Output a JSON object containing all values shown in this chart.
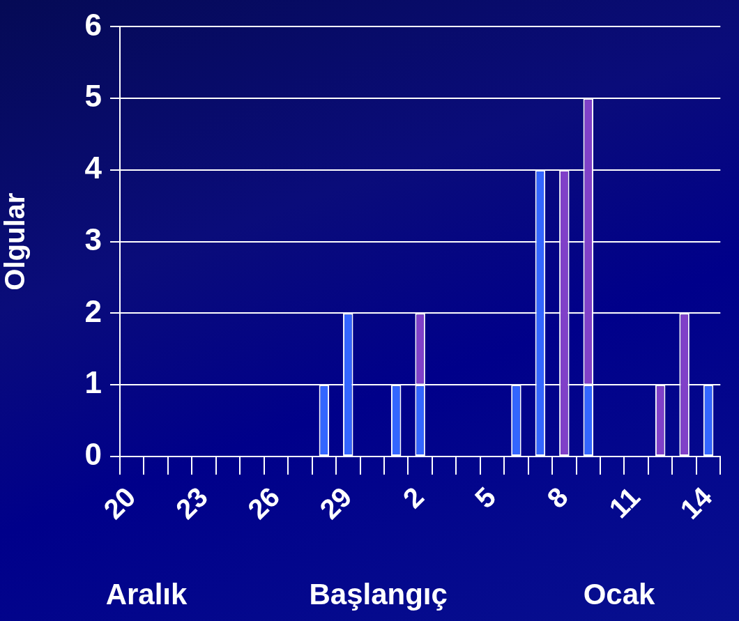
{
  "chart_data": {
    "type": "bar",
    "stacked": true,
    "ylabel": "Olgular",
    "xlabel": "Başlangıç",
    "annotations": [
      "Aralık",
      "Ocak"
    ],
    "categories": [
      "20",
      null,
      null,
      "23",
      null,
      null,
      "26",
      null,
      null,
      "29",
      null,
      null,
      "2",
      null,
      null,
      "5",
      null,
      null,
      "8",
      null,
      null,
      "11",
      null,
      null,
      "14"
    ],
    "series": [
      {
        "color": "#3366ff",
        "values": [
          0,
          0,
          0,
          0,
          0,
          0,
          0,
          0,
          1,
          2,
          0,
          1,
          1,
          0,
          0,
          0,
          1,
          4,
          0,
          1,
          0,
          0,
          0,
          0,
          1
        ]
      },
      {
        "color": "#8040c8",
        "values": [
          0,
          0,
          0,
          0,
          0,
          0,
          0,
          0,
          0,
          0,
          0,
          0,
          1,
          0,
          0,
          0,
          0,
          0,
          4,
          4,
          0,
          0,
          1,
          2,
          0
        ]
      }
    ],
    "ylim": [
      0,
      6
    ],
    "yticks": [
      0,
      1,
      2,
      3,
      4,
      5,
      6
    ],
    "grid": "y",
    "legend": false
  }
}
